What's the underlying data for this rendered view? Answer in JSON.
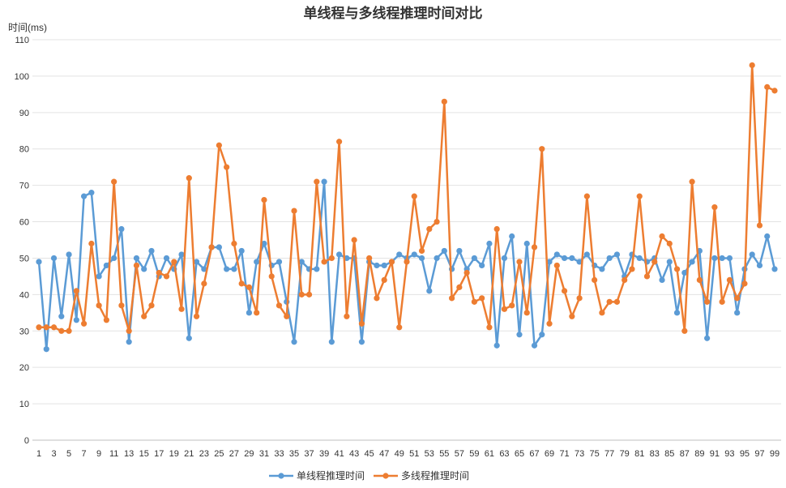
{
  "chart_data": {
    "type": "line",
    "title": "单线程与多线程推理时间对比",
    "ylabel": "时间(ms)",
    "xlabel": "",
    "ylim": [
      0,
      110
    ],
    "yticks": [
      0,
      10,
      20,
      30,
      40,
      50,
      60,
      70,
      80,
      90,
      100,
      110
    ],
    "x": [
      1,
      2,
      3,
      4,
      5,
      6,
      7,
      8,
      9,
      10,
      11,
      12,
      13,
      14,
      15,
      16,
      17,
      18,
      19,
      20,
      21,
      22,
      23,
      24,
      25,
      26,
      27,
      28,
      29,
      30,
      31,
      32,
      33,
      34,
      35,
      36,
      37,
      38,
      39,
      40,
      41,
      42,
      43,
      44,
      45,
      46,
      47,
      48,
      49,
      50,
      51,
      52,
      53,
      54,
      55,
      56,
      57,
      58,
      59,
      60,
      61,
      62,
      63,
      64,
      65,
      66,
      67,
      68,
      69,
      70,
      71,
      72,
      73,
      74,
      75,
      76,
      77,
      78,
      79,
      80,
      81,
      82,
      83,
      84,
      85,
      86,
      87,
      88,
      89,
      90,
      91,
      92,
      93,
      94,
      95,
      96,
      97,
      98,
      99
    ],
    "xtick_labels": [
      1,
      3,
      5,
      7,
      9,
      11,
      13,
      15,
      17,
      19,
      21,
      23,
      25,
      27,
      29,
      31,
      33,
      35,
      37,
      39,
      41,
      43,
      45,
      47,
      49,
      51,
      53,
      55,
      57,
      59,
      61,
      63,
      65,
      67,
      69,
      71,
      73,
      75,
      77,
      79,
      81,
      83,
      85,
      87,
      89,
      91,
      93,
      95,
      97,
      99
    ],
    "grid": true,
    "legend_position": "bottom",
    "series": [
      {
        "name": "单线程推理时间",
        "color": "#5B9BD5",
        "values": [
          49,
          25,
          50,
          34,
          51,
          33,
          67,
          68,
          45,
          48,
          50,
          58,
          27,
          50,
          47,
          52,
          45,
          50,
          47,
          51,
          28,
          49,
          47,
          53,
          53,
          47,
          47,
          52,
          35,
          49,
          54,
          48,
          49,
          38,
          27,
          49,
          47,
          47,
          71,
          27,
          51,
          50,
          50,
          27,
          49,
          48,
          48,
          49,
          51,
          50,
          51,
          50,
          41,
          50,
          52,
          47,
          52,
          47,
          50,
          48,
          54,
          26,
          50,
          56,
          29,
          54,
          26,
          29,
          49,
          51,
          50,
          50,
          49,
          51,
          48,
          47,
          50,
          51,
          45,
          51,
          50,
          49,
          50,
          44,
          49,
          35,
          46,
          49,
          52,
          28,
          50,
          50,
          50,
          35,
          47,
          51,
          48,
          56,
          47
        ]
      },
      {
        "name": "多线程推理时间",
        "color": "#ED7D31",
        "values": [
          31,
          31,
          31,
          30,
          30,
          41,
          32,
          54,
          37,
          33,
          71,
          37,
          30,
          48,
          34,
          37,
          46,
          45,
          49,
          36,
          72,
          34,
          43,
          53,
          81,
          75,
          54,
          43,
          42,
          35,
          66,
          45,
          37,
          34,
          63,
          40,
          40,
          71,
          49,
          50,
          82,
          34,
          55,
          32,
          50,
          39,
          44,
          49,
          31,
          49,
          67,
          52,
          58,
          60,
          93,
          39,
          42,
          46,
          38,
          39,
          31,
          58,
          36,
          37,
          49,
          35,
          53,
          80,
          32,
          48,
          41,
          34,
          39,
          67,
          44,
          35,
          38,
          38,
          44,
          47,
          67,
          45,
          49,
          56,
          54,
          47,
          30,
          71,
          44,
          38,
          64,
          38,
          44,
          39,
          43,
          103,
          59,
          97,
          96
        ]
      }
    ]
  }
}
